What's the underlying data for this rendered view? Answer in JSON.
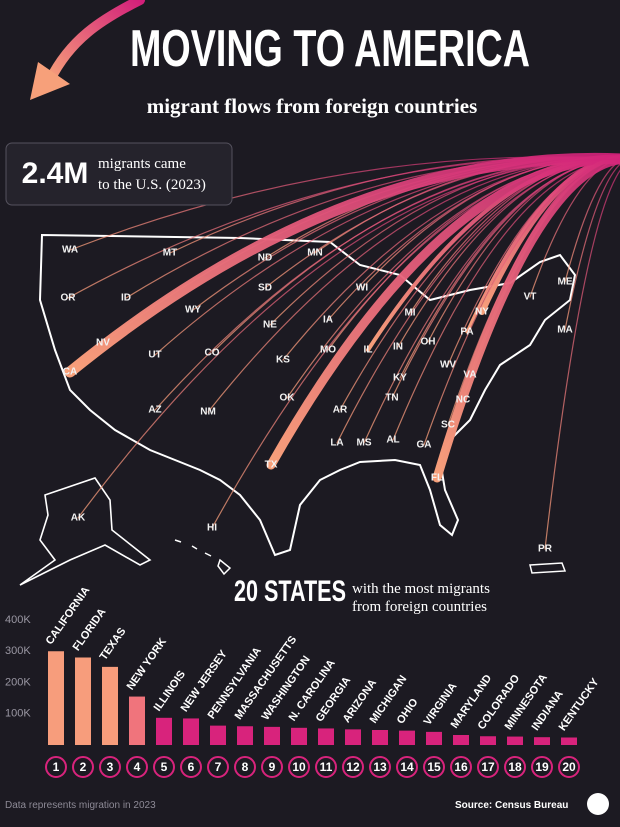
{
  "title": "MOVING TO AMERICA",
  "subtitle": "migrant flows from foreign countries",
  "stat": {
    "value": "2.4M",
    "label_lines": [
      "migrants came",
      "to the U.S. (2023)"
    ]
  },
  "map": {
    "states": [
      "WA",
      "MT",
      "ND",
      "MN",
      "OR",
      "ID",
      "WY",
      "SD",
      "WI",
      "ME",
      "NV",
      "UT",
      "CO",
      "NE",
      "IA",
      "MI",
      "NY",
      "VT",
      "MA",
      "PA",
      "CA",
      "KS",
      "MO",
      "IL",
      "IN",
      "OH",
      "WV",
      "VA",
      "KY",
      "AZ",
      "NM",
      "OK",
      "AR",
      "TN",
      "NC",
      "SC",
      "LA",
      "MS",
      "AL",
      "GA",
      "TX",
      "FL",
      "AK",
      "HI",
      "PR"
    ]
  },
  "chart_data": {
    "type": "bar",
    "title": "20 STATES",
    "subtitle_lines": [
      "with the most migrants",
      "from foreign countries"
    ],
    "categories": [
      "CALIFORNIA",
      "FLORIDA",
      "TEXAS",
      "NEW YORK",
      "ILLINOIS",
      "NEW JERSEY",
      "PENNSYLVANIA",
      "MASSACHUSETTS",
      "WASHINGTON",
      "N. CAROLINA",
      "GEORGIA",
      "ARIZONA",
      "MICHIGAN",
      "OHIO",
      "VIRGINIA",
      "MARYLAND",
      "COLORADO",
      "MINNESOTA",
      "INDIANA",
      "KENTUCKY"
    ],
    "ranks": [
      1,
      2,
      3,
      4,
      5,
      6,
      7,
      8,
      9,
      10,
      11,
      12,
      13,
      14,
      15,
      16,
      17,
      18,
      19,
      20
    ],
    "values": [
      300000,
      280000,
      250000,
      155000,
      87000,
      85000,
      62000,
      60000,
      58000,
      55000,
      53000,
      50000,
      48000,
      46000,
      42000,
      32000,
      28000,
      27000,
      25000,
      24000
    ],
    "colors": [
      "#f79d7c",
      "#f79d7c",
      "#f79d7c",
      "#f0747c",
      "#d8237c",
      "#d8237c",
      "#d8237c",
      "#d8237c",
      "#d8237c",
      "#d8237c",
      "#d8237c",
      "#d8237c",
      "#d8237c",
      "#d8237c",
      "#d8237c",
      "#d8237c",
      "#d8237c",
      "#d8237c",
      "#d8237c",
      "#d8237c"
    ],
    "ylim": [
      0,
      400000
    ],
    "yticks": [
      {
        "value": 100000,
        "label": "100K"
      },
      {
        "value": 200000,
        "label": "200K"
      },
      {
        "value": 300000,
        "label": "300K"
      },
      {
        "value": 400000,
        "label": "400K"
      }
    ]
  },
  "footer": {
    "note": "Data represents migration in 2023",
    "source": "Source: Census Bureau"
  }
}
